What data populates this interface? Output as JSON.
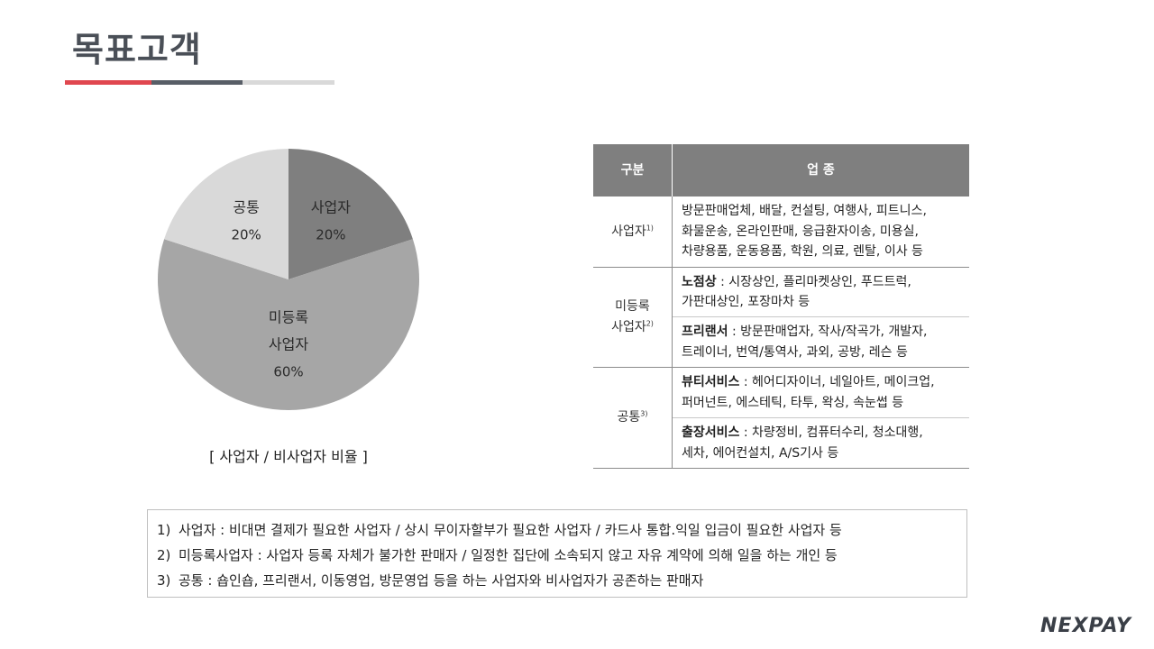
{
  "page": {
    "title": "목표고객"
  },
  "chart_data": {
    "type": "pie",
    "caption": "[ 사업자 / 비사업자 비율 ]",
    "slices": [
      {
        "label": "사업자",
        "value": 20,
        "value_text": "20%",
        "color": "#7f7f7f"
      },
      {
        "label": "미등록\n사업자",
        "value": 60,
        "value_text": "60%",
        "color": "#a6a6a6"
      },
      {
        "label": "공통",
        "value": 20,
        "value_text": "20%",
        "color": "#d9d9d9"
      }
    ]
  },
  "table": {
    "headers": {
      "category": "구분",
      "sector": "업 종"
    },
    "row1": {
      "category": "사업자",
      "note": "1)",
      "line1": "방문판매업체, 배달, 컨설팅, 여행사, 피트니스,",
      "line2": "화물운송, 온라인판매, 응급환자이송, 미용실,",
      "line3": "차량용품, 운동용품, 학원, 의료, 렌탈, 이사 등"
    },
    "row2": {
      "category_line1": "미등록",
      "category_line2": "사업자",
      "note": "2)",
      "a_bold": "노점상",
      "a_rest": " : 시장상인, 플리마켓상인, 푸드트럭,",
      "a_line2": "가판대상인, 포장마차 등",
      "b_bold": "프리랜서",
      "b_rest": " : 방문판매업자, 작사/작곡가, 개발자,",
      "b_line2": "트레이너, 번역/통역사, 과외, 공방, 레슨 등"
    },
    "row3": {
      "category": "공통",
      "note": "3)",
      "a_bold": "뷰티서비스",
      "a_rest": " : 헤어디자이너, 네일아트, 메이크업,",
      "a_line2": "퍼머넌트, 에스테틱, 타투, 왁싱, 속눈썹 등",
      "b_bold": "출장서비스",
      "b_rest": " : 차량정비, 컴퓨터수리, 청소대행,",
      "b_line2": "세차, 에어컨설치, A/S기사 등"
    }
  },
  "notes": [
    {
      "num": "1)",
      "text": "사업자  : 비대면 결제가 필요한 사업자 / 상시 무이자할부가 필요한 사업자 / 카드사 통합.익일 입금이 필요한 사업자 등"
    },
    {
      "num": "2)",
      "text": "미등록사업자  :  사업자 등록 자체가 불가한 판매자 / 일정한 집단에 소속되지 않고 자유 계약에 의해 일을 하는 개인 등"
    },
    {
      "num": "3)",
      "text": "공통 : 숍인숍, 프리랜서, 이동영업, 방문영업 등을 하는 사업자와 비사업자가 공존하는 판매자"
    }
  ],
  "logo": {
    "part1": "NEX",
    "part2": "PAY"
  }
}
